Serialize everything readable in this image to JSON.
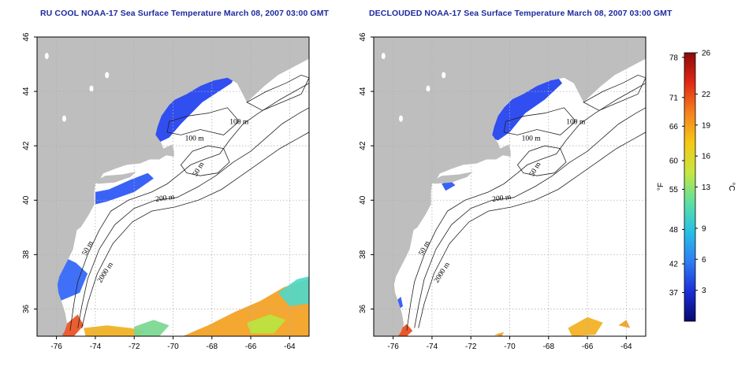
{
  "panels": [
    {
      "title": "RU COOL NOAA-17 Sea Surface Temperature March 08, 2007 03:00 GMT",
      "clouds": true
    },
    {
      "title": "DECLOUDED NOAA-17 Sea Surface Temperature March 08, 2007 03:00 GMT",
      "clouds": false
    }
  ],
  "map": {
    "lon_range": [
      -77,
      -63
    ],
    "lat_range": [
      35,
      46
    ],
    "x_ticks": [
      "-76",
      "-74",
      "-72",
      "-70",
      "-68",
      "-66",
      "-64"
    ],
    "y_ticks": [
      "36",
      "38",
      "40",
      "42",
      "44",
      "46"
    ],
    "land_color": "#bebebe",
    "ocean_color": "#ffffff",
    "grid": "dotted",
    "contour_labels": {
      "c100a": "100 m",
      "c100b": "100 m",
      "c50a": "50 m",
      "c200": "200 m",
      "c50b": "50 m",
      "c2000": "2000 m"
    }
  },
  "colorbar": {
    "unit_f": "°F",
    "unit_c": "°C",
    "f_ticks": [
      "78",
      "71",
      "66",
      "60",
      "55",
      "48",
      "42",
      "37"
    ],
    "c_ticks": [
      "26",
      "22",
      "19",
      "16",
      "13",
      "9",
      "6",
      "3"
    ],
    "colors": [
      "#08086e",
      "#1a2fd6",
      "#2f7df2",
      "#27c0e6",
      "#5fe0a0",
      "#c8e640",
      "#f5c814",
      "#f5801e",
      "#e02814",
      "#8c0a0a"
    ]
  }
}
